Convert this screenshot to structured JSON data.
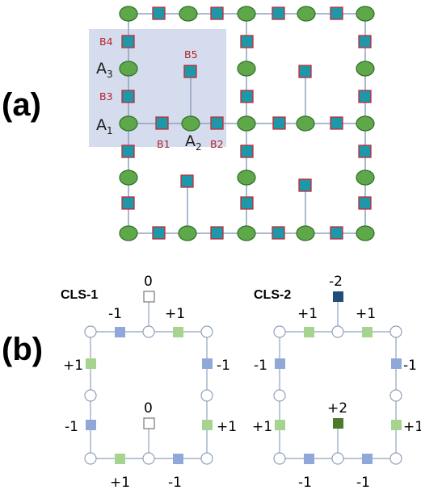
{
  "panel_a": {
    "label": "(a)",
    "site_labels": {
      "A3": {
        "main": "A",
        "sub": "3"
      },
      "A1": {
        "main": "A",
        "sub": "1"
      },
      "A2": {
        "main": "A",
        "sub": "2"
      }
    },
    "bond_labels": {
      "B4": "B4",
      "B3": "B3",
      "B5": "B5",
      "B1": "B1",
      "B2": "B2"
    },
    "colors": {
      "highlight": "#d5dcee",
      "circle_fill": "#5ea84a",
      "circle_stroke": "#2f6e2a",
      "square_fill": "#1e98a8",
      "square_stroke": "#c42a35",
      "line": "#8fa2bd"
    }
  },
  "panel_b": {
    "label": "(b)",
    "cls1": {
      "title": "CLS-1",
      "top_value": "0",
      "center_value": "0",
      "top_left": "-1",
      "top_right": "+1",
      "left_upper": "+1",
      "left_lower": "-1",
      "right_upper": "-1",
      "right_lower": "+1",
      "bottom_left": "+1",
      "bottom_right": "-1"
    },
    "cls2": {
      "title": "CLS-2",
      "top_value": "-2",
      "center_value": "+2",
      "top_left": "+1",
      "top_right": "+1",
      "left_upper": "-1",
      "left_lower": "+1",
      "right_upper": "-1",
      "right_lower": "+1",
      "bottom_left": "-1",
      "bottom_right": "-1"
    },
    "colors": {
      "plus_one": "#a6d48f",
      "minus_one": "#8fa8d9",
      "minus_two": "#1f4e79",
      "plus_two": "#4a7a2a",
      "zero_stroke": "#777777",
      "circle_stroke": "#8fa2bd",
      "line": "#8fa2bd"
    }
  }
}
